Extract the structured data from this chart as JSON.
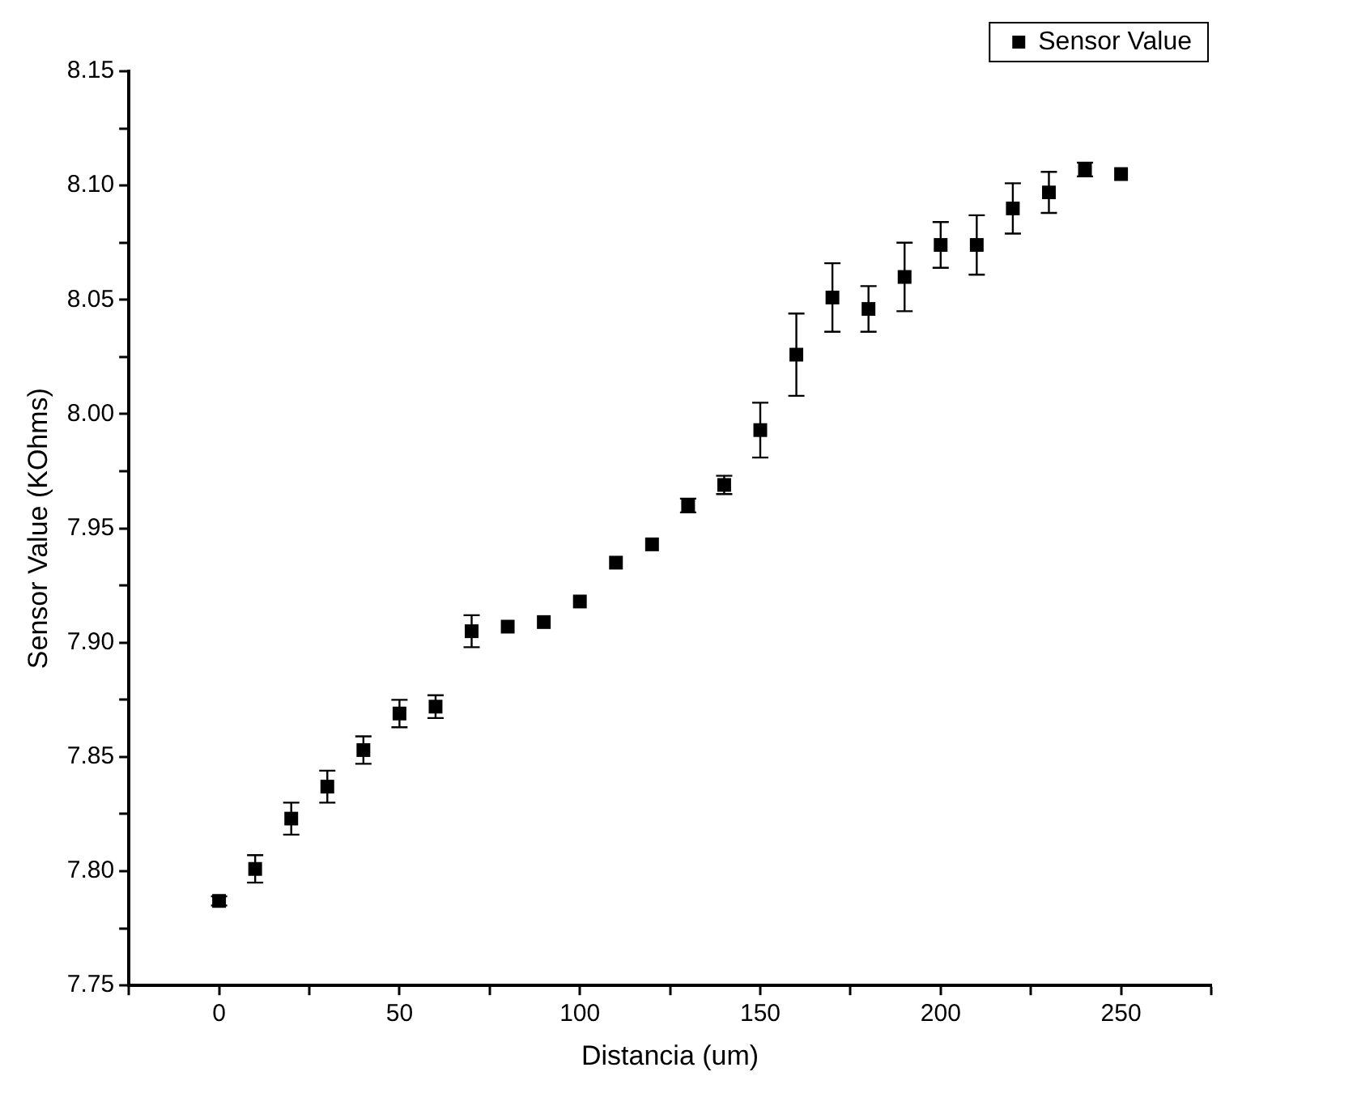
{
  "chart_data": {
    "type": "scatter",
    "xlabel": "Distancia (um)",
    "ylabel": "Sensor Value (KOhms)",
    "x": [
      0,
      10,
      20,
      30,
      40,
      50,
      60,
      70,
      80,
      90,
      100,
      110,
      120,
      130,
      140,
      150,
      160,
      170,
      180,
      190,
      200,
      210,
      220,
      230,
      240,
      250
    ],
    "series": [
      {
        "name": "Sensor Value",
        "color": "#000000",
        "values": [
          7.787,
          7.801,
          7.823,
          7.837,
          7.853,
          7.869,
          7.872,
          7.905,
          7.907,
          7.909,
          7.918,
          7.935,
          7.943,
          7.96,
          7.969,
          7.993,
          8.026,
          8.051,
          8.046,
          8.06,
          8.074,
          8.074,
          8.09,
          8.097,
          8.107,
          8.105
        ],
        "errors": [
          0.002,
          0.006,
          0.007,
          0.007,
          0.006,
          0.006,
          0.005,
          0.007,
          null,
          null,
          null,
          null,
          null,
          0.003,
          0.004,
          0.012,
          0.018,
          0.015,
          0.01,
          0.015,
          0.01,
          0.013,
          0.011,
          0.009,
          0.003,
          null
        ]
      }
    ],
    "xlim": [
      -25,
      275
    ],
    "xticks": [
      {
        "value": -25,
        "label": null
      },
      0,
      {
        "value": 25,
        "label": null
      },
      50,
      {
        "value": 75,
        "label": null
      },
      100,
      {
        "value": 125,
        "label": null
      },
      150,
      {
        "value": 175,
        "label": null
      },
      200,
      {
        "value": 225,
        "label": null
      },
      250,
      {
        "value": 275,
        "label": null
      }
    ],
    "ylim": [
      7.75,
      8.15
    ],
    "yticks": [
      {
        "value": 7.75,
        "label": "7.75"
      },
      {
        "value": 7.775,
        "label": null
      },
      {
        "value": 7.8,
        "label": "7.80"
      },
      {
        "value": 7.825,
        "label": null
      },
      {
        "value": 7.85,
        "label": "7.85"
      },
      {
        "value": 7.875,
        "label": null
      },
      {
        "value": 7.9,
        "label": "7.90"
      },
      {
        "value": 7.925,
        "label": null
      },
      {
        "value": 7.95,
        "label": "7.95"
      },
      {
        "value": 7.975,
        "label": null
      },
      {
        "value": 8.0,
        "label": "8.00"
      },
      {
        "value": 8.025,
        "label": null
      },
      {
        "value": 8.05,
        "label": "8.05"
      },
      {
        "value": 8.075,
        "label": null
      },
      {
        "value": 8.1,
        "label": "8.10"
      },
      {
        "value": 8.125,
        "label": null
      },
      {
        "value": 8.15,
        "label": "8.15"
      }
    ],
    "grid": false,
    "legend": "top right",
    "marker": "square"
  }
}
